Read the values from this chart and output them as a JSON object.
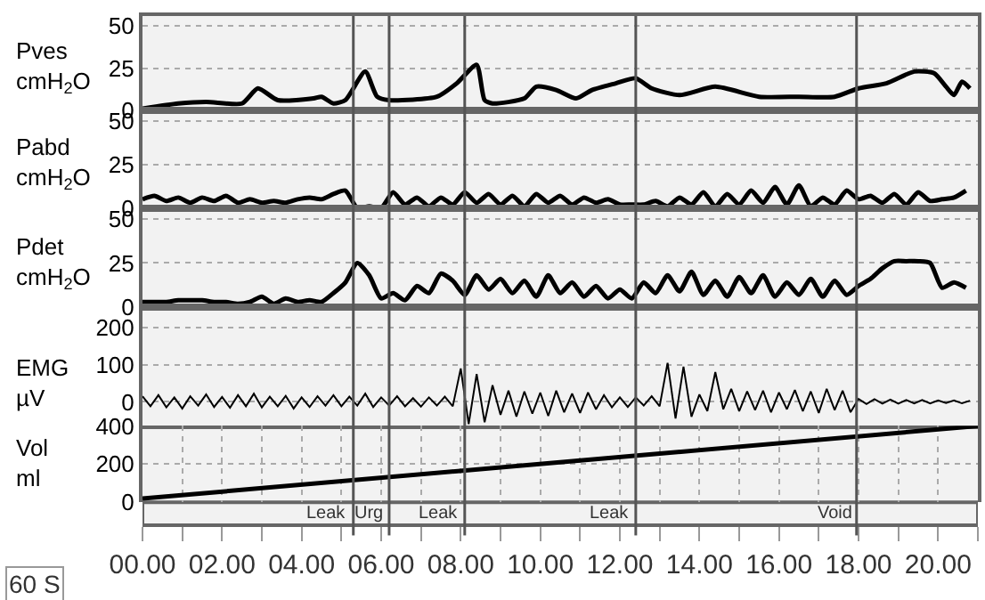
{
  "chart_data": [
    {
      "type": "line",
      "ylabel": "Pves\ncmH$_{2}$O",
      "x": [
        0,
        0.9,
        1.6,
        2.5,
        2.9,
        3.4,
        4.3,
        4.5,
        4.8,
        5.1,
        5.6,
        5.9,
        6.2,
        7.4,
        7.9,
        8.4,
        8.6,
        8.8,
        9.6,
        9.9,
        10.4,
        10.9,
        11.3,
        11.9,
        12.4,
        12.8,
        13.5,
        14.4,
        15.5,
        16.5,
        17.4,
        18.0,
        18.7,
        19.4,
        19.9,
        20.2,
        20.4,
        20.6,
        20.8
      ],
      "series": [
        {
          "color": "#000000",
          "values": [
            1,
            4,
            5,
            4,
            13,
            6,
            7,
            8,
            4,
            6,
            23,
            8,
            6,
            8,
            16,
            27,
            6,
            4,
            7,
            14,
            12,
            7,
            12,
            16,
            19,
            13,
            9,
            14,
            8,
            8,
            8,
            13,
            16,
            23,
            22,
            14,
            9,
            17,
            13
          ]
        }
      ],
      "xlim": [
        0,
        21
      ],
      "ylim": [
        0,
        56
      ],
      "yticks": [
        0,
        25,
        50
      ],
      "grid": true,
      "tick_labels": "y",
      "ref_lines": [
        {
          "axis": "x",
          "value": 5.3
        },
        {
          "axis": "x",
          "value": 6.2
        },
        {
          "axis": "x",
          "value": 8.1
        },
        {
          "axis": "x",
          "value": 12.4
        },
        {
          "axis": "x",
          "value": 17.95
        }
      ]
    },
    {
      "type": "line",
      "ylabel": "Pabd\ncmH$_{2}$O",
      "x": [
        0,
        0.3,
        0.6,
        0.9,
        1.2,
        1.5,
        1.8,
        2.1,
        2.4,
        2.7,
        3,
        3.3,
        3.6,
        3.9,
        4.2,
        4.5,
        4.8,
        5.1,
        5.4,
        5.7,
        6,
        6.3,
        6.6,
        6.9,
        7.2,
        7.5,
        7.8,
        8.1,
        8.4,
        8.7,
        9,
        9.3,
        9.6,
        9.9,
        10.2,
        10.5,
        10.8,
        11.1,
        11.4,
        11.7,
        12,
        12.3,
        12.6,
        12.9,
        13.2,
        13.5,
        13.8,
        14.1,
        14.4,
        14.7,
        15,
        15.3,
        15.6,
        15.9,
        16.2,
        16.5,
        16.8,
        17.1,
        17.4,
        17.7,
        18,
        18.3,
        18.6,
        18.9,
        19.2,
        19.5,
        19.8,
        20.1,
        20.4,
        20.7
      ],
      "series": [
        {
          "color": "#000000",
          "values": [
            5,
            7,
            4,
            6,
            3,
            6,
            4,
            7,
            3,
            5,
            3,
            4,
            3,
            5,
            6,
            5,
            8,
            10,
            0,
            1,
            0,
            9,
            2,
            6,
            1,
            6,
            2,
            9,
            3,
            8,
            2,
            7,
            1,
            8,
            3,
            7,
            2,
            6,
            3,
            5,
            2,
            2,
            2,
            4,
            1,
            6,
            2,
            9,
            1,
            8,
            2,
            10,
            3,
            12,
            2,
            13,
            1,
            6,
            2,
            10,
            5,
            7,
            3,
            8,
            2,
            9,
            4,
            5,
            6,
            10
          ]
        }
      ],
      "xlim": [
        0,
        21
      ],
      "ylim": [
        0,
        56
      ],
      "yticks": [
        0,
        25,
        50
      ],
      "grid": true,
      "tick_labels": "y",
      "ref_lines": [
        {
          "axis": "x",
          "value": 5.3
        },
        {
          "axis": "x",
          "value": 6.2
        },
        {
          "axis": "x",
          "value": 8.1
        },
        {
          "axis": "x",
          "value": 12.4
        },
        {
          "axis": "x",
          "value": 17.95
        }
      ]
    },
    {
      "type": "line",
      "ylabel": "Pdet\ncmH$_{2}$O",
      "x": [
        0,
        0.3,
        0.6,
        0.9,
        1.2,
        1.5,
        1.8,
        2.1,
        2.4,
        2.7,
        3,
        3.3,
        3.6,
        3.9,
        4.2,
        4.5,
        4.8,
        5.1,
        5.4,
        5.7,
        6,
        6.3,
        6.6,
        6.9,
        7.2,
        7.5,
        7.8,
        8.1,
        8.4,
        8.7,
        9,
        9.3,
        9.6,
        9.9,
        10.2,
        10.5,
        10.8,
        11.1,
        11.4,
        11.7,
        12,
        12.3,
        12.6,
        12.9,
        13.2,
        13.5,
        13.8,
        14.1,
        14.4,
        14.7,
        15,
        15.3,
        15.6,
        15.9,
        16.2,
        16.5,
        16.8,
        17.1,
        17.4,
        17.7,
        18,
        18.3,
        18.6,
        18.9,
        19.2,
        19.5,
        19.8,
        20.1,
        20.4,
        20.7
      ],
      "series": [
        {
          "color": "#000000",
          "values": [
            3,
            3,
            3,
            4,
            4,
            4,
            3,
            3,
            2,
            3,
            6,
            2,
            5,
            3,
            4,
            3,
            8,
            14,
            25,
            18,
            5,
            8,
            4,
            12,
            8,
            19,
            15,
            7,
            18,
            10,
            16,
            8,
            15,
            6,
            18,
            8,
            14,
            6,
            12,
            5,
            10,
            5,
            14,
            8,
            18,
            9,
            20,
            7,
            15,
            6,
            17,
            8,
            18,
            6,
            14,
            7,
            16,
            6,
            15,
            7,
            12,
            16,
            22,
            26,
            26,
            26,
            25,
            11,
            14,
            11
          ]
        }
      ],
      "xlim": [
        0,
        21
      ],
      "ylim": [
        0,
        56
      ],
      "yticks": [
        0,
        25,
        50
      ],
      "grid": true,
      "tick_labels": "y",
      "ref_lines": [
        {
          "axis": "x",
          "value": 5.3
        },
        {
          "axis": "x",
          "value": 6.2
        },
        {
          "axis": "x",
          "value": 8.1
        },
        {
          "axis": "x",
          "value": 12.4
        },
        {
          "axis": "x",
          "value": 17.95
        }
      ]
    },
    {
      "type": "line",
      "ylabel": "EMG\nµV",
      "x": [
        0,
        0.2,
        0.4,
        0.6,
        0.8,
        1,
        1.2,
        1.4,
        1.6,
        1.8,
        2,
        2.2,
        2.4,
        2.6,
        2.8,
        3,
        3.2,
        3.4,
        3.6,
        3.8,
        4,
        4.2,
        4.4,
        4.6,
        4.8,
        5,
        5.2,
        5.4,
        5.6,
        5.8,
        6,
        6.2,
        6.4,
        6.6,
        6.8,
        7,
        7.2,
        7.4,
        7.6,
        7.8,
        8,
        8.2,
        8.4,
        8.6,
        8.8,
        9,
        9.2,
        9.4,
        9.6,
        9.8,
        10,
        10.2,
        10.4,
        10.6,
        10.8,
        11,
        11.2,
        11.4,
        11.6,
        11.8,
        12,
        12.2,
        12.4,
        12.6,
        12.8,
        13,
        13.2,
        13.4,
        13.6,
        13.8,
        14,
        14.2,
        14.4,
        14.6,
        14.8,
        15,
        15.2,
        15.4,
        15.6,
        15.8,
        16,
        16.2,
        16.4,
        16.6,
        16.8,
        17,
        17.2,
        17.4,
        17.6,
        17.8,
        18,
        18.2,
        18.4,
        18.6,
        18.8,
        19,
        19.2,
        19.4,
        19.6,
        19.8,
        20,
        20.2,
        20.4,
        20.6,
        20.8
      ],
      "series": [
        {
          "color": "#000000",
          "values": [
            15,
            -12,
            18,
            -15,
            12,
            -18,
            15,
            -10,
            20,
            -14,
            13,
            -16,
            18,
            -12,
            22,
            -15,
            14,
            -12,
            16,
            -18,
            12,
            -14,
            15,
            -10,
            18,
            -12,
            14,
            -10,
            22,
            -14,
            12,
            -10,
            15,
            -12,
            10,
            -13,
            12,
            -10,
            14,
            -12,
            90,
            -60,
            75,
            -55,
            45,
            -35,
            30,
            -40,
            28,
            -32,
            25,
            -38,
            30,
            -28,
            22,
            -30,
            25,
            -20,
            18,
            -15,
            12,
            -14,
            12,
            -10,
            15,
            -12,
            105,
            -45,
            95,
            -40,
            20,
            -25,
            80,
            -20,
            35,
            -25,
            28,
            -22,
            30,
            -28,
            25,
            -20,
            32,
            -25,
            28,
            -30,
            35,
            -22,
            30,
            -28,
            8,
            -6,
            7,
            -5,
            6,
            -5,
            5,
            -4,
            5,
            -4,
            4,
            -3,
            4,
            -4,
            3
          ]
        }
      ],
      "xlim": [
        0,
        21
      ],
      "ylim": [
        -65,
        255
      ],
      "yticks": [
        0,
        100,
        200
      ],
      "grid": true,
      "tick_labels": "y",
      "ref_lines": [
        {
          "axis": "x",
          "value": 5.3
        },
        {
          "axis": "x",
          "value": 6.2
        },
        {
          "axis": "x",
          "value": 8.1
        },
        {
          "axis": "x",
          "value": 12.4
        },
        {
          "axis": "x",
          "value": 17.95
        }
      ]
    },
    {
      "type": "line",
      "ylabel": "Vol\nml",
      "x": [
        0,
        21
      ],
      "series": [
        {
          "color": "#000000",
          "values": [
            20,
            400
          ]
        }
      ],
      "xlim": [
        0,
        21
      ],
      "ylim": [
        0,
        400
      ],
      "yticks": [
        0,
        200,
        400
      ],
      "grid": true,
      "xticks": [
        {
          "value": 0,
          "label": "00.00"
        },
        {
          "value": 1,
          "label": null
        },
        {
          "value": 2,
          "label": "02.00"
        },
        {
          "value": 3,
          "label": null
        },
        {
          "value": 4,
          "label": "04.00"
        },
        {
          "value": 5,
          "label": null
        },
        {
          "value": 6,
          "label": "06.00"
        },
        {
          "value": 7,
          "label": null
        },
        {
          "value": 8,
          "label": "08.00"
        },
        {
          "value": 9,
          "label": null
        },
        {
          "value": 10,
          "label": "10.00"
        },
        {
          "value": 11,
          "label": null
        },
        {
          "value": 12,
          "label": "12.00"
        },
        {
          "value": 13,
          "label": null
        },
        {
          "value": 14,
          "label": "14.00"
        },
        {
          "value": 15,
          "label": null
        },
        {
          "value": 16,
          "label": "16.00"
        },
        {
          "value": 17,
          "label": null
        },
        {
          "value": 18,
          "label": "18.00"
        },
        {
          "value": 19,
          "label": null
        },
        {
          "value": 20,
          "label": "20.00"
        },
        {
          "value": 21,
          "label": null
        }
      ],
      "ref_lines": [
        {
          "axis": "x",
          "value": 5.3,
          "label": "Leak"
        },
        {
          "axis": "x",
          "value": 6.2,
          "label": "Urg"
        },
        {
          "axis": "x",
          "value": 8.1,
          "label": "Leak"
        },
        {
          "axis": "x",
          "value": 12.4,
          "label": "Leak"
        },
        {
          "axis": "x",
          "value": 17.95,
          "label": "Void"
        }
      ],
      "annotations": [
        "60 S"
      ]
    }
  ]
}
